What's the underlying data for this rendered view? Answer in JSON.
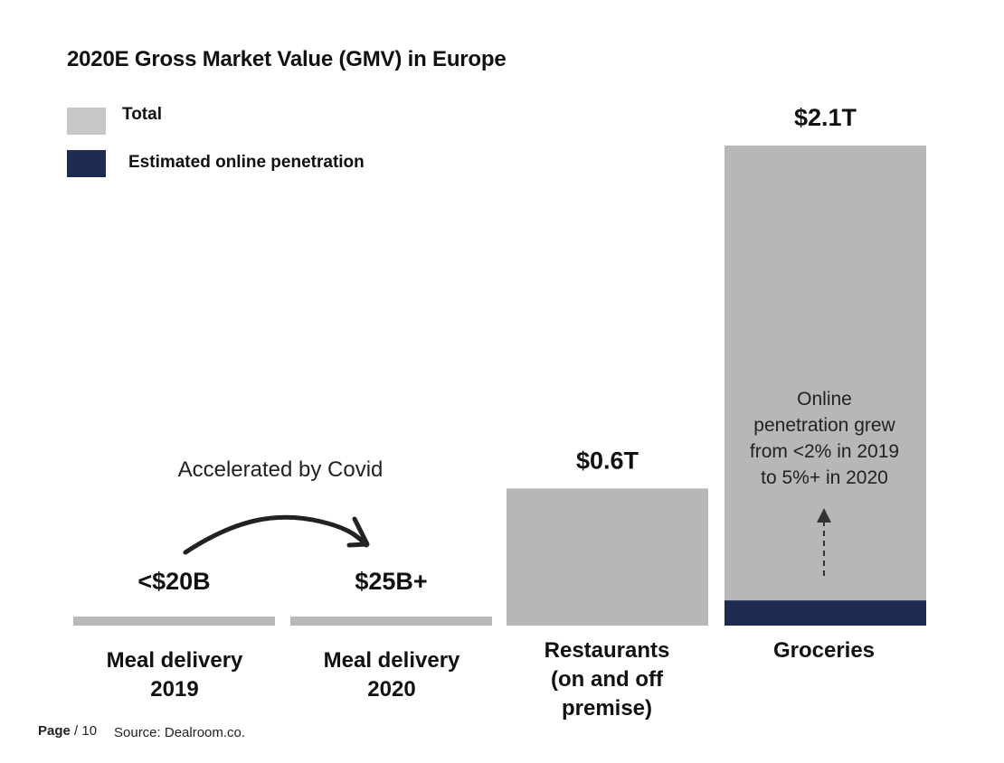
{
  "chart_data": {
    "type": "bar",
    "title": "2020E Gross Market Value (GMV) in Europe",
    "unit": "Trillion USD",
    "legend": [
      {
        "name": "Total",
        "color": "#c7c7c7"
      },
      {
        "name": "Estimated online penetration",
        "color": "#1e2b51"
      }
    ],
    "categories": [
      "Meal delivery\n2019",
      "Meal delivery\n2020",
      "Restaurants\n(on and off\npremise)",
      "Groceries"
    ],
    "series": [
      {
        "name": "Total",
        "color": "#b7b7b7",
        "values": [
          0.02,
          0.025,
          0.6,
          2.1
        ]
      },
      {
        "name": "Estimated online penetration",
        "color": "#1e2b51",
        "values": [
          0,
          0,
          0,
          0.11
        ]
      }
    ],
    "value_labels": [
      "<$20B",
      "$25B+",
      "$0.6T",
      "$2.1T"
    ],
    "ylim": [
      0,
      2.1
    ]
  },
  "annotations": {
    "groceries_note": "Online\npenetration grew\nfrom <2% in 2019\nto 5%+ in 2020",
    "covid_note": "Accelerated by Covid"
  },
  "footer": {
    "page_label": "Page",
    "page_number": "/ 10",
    "source": "Source: Dealroom.co."
  }
}
